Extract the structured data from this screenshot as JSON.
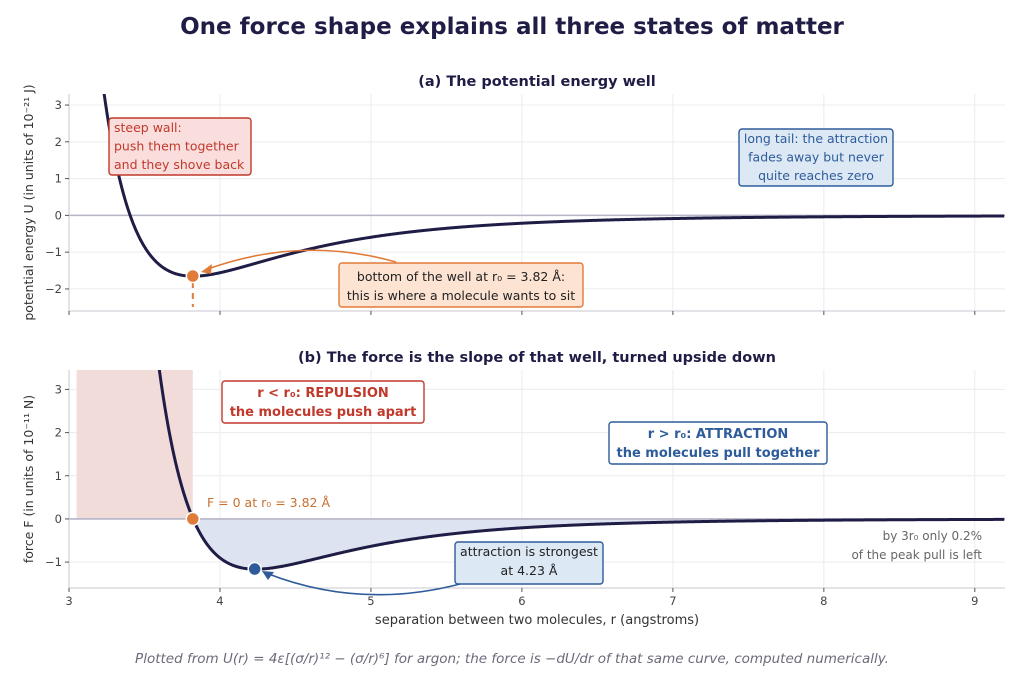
{
  "figure": {
    "title": "One force shape explains all three states of matter",
    "caption": "Plotted from U(r) = 4ε[(σ/r)¹² − (σ/r)⁶] for argon; the force is −dU/dr of that same curve, computed numerically."
  },
  "colors": {
    "curve": "#1f1d45",
    "repulsion": "#c0392b",
    "repulsion_fill": "#f2dcd9",
    "attraction": "#2e5c9a",
    "attraction_fill": "#dde3f0",
    "minimum_marker": "#e07b39",
    "grid": "#ececf0",
    "zero_line": "#b5b5c8"
  },
  "chart_data": [
    {
      "type": "line",
      "title": "(a) The potential energy well",
      "xlabel": "",
      "ylabel": "potential energy U  (in units of 10⁻²¹ J)",
      "xlim": [
        3.0,
        9.2
      ],
      "ylim": [
        -2.6,
        3.3
      ],
      "x_ticks": [
        3,
        4,
        5,
        6,
        7,
        8,
        9
      ],
      "y_ticks": [
        -2,
        -1,
        0,
        1,
        2,
        3
      ],
      "grid": true,
      "model": {
        "epsilon": 1.654,
        "sigma": 3.405
      },
      "series": [
        {
          "x": [
            3.2,
            3.3,
            3.4,
            3.5,
            3.6,
            3.7,
            3.82,
            3.9,
            4.0,
            4.2,
            4.4,
            4.6,
            4.8,
            5.0,
            5.5,
            6.0,
            6.5,
            7.0,
            7.5,
            8.0,
            8.5,
            9.0,
            9.2
          ],
          "y": [
            3.22,
            1.42,
            0.13,
            -0.75,
            -1.28,
            -1.56,
            -1.65,
            -1.63,
            -1.55,
            -1.31,
            -1.07,
            -0.85,
            -0.68,
            -0.55,
            -0.33,
            -0.2,
            -0.13,
            -0.089,
            -0.06,
            -0.042,
            -0.03,
            -0.022,
            -0.019
          ]
        }
      ],
      "marker": {
        "x": 3.82,
        "y": -1.65
      },
      "annotations": {
        "wall": [
          "steep wall:",
          "push them together",
          "and they shove back"
        ],
        "tail": [
          "long tail: the attraction",
          "fades away but never",
          "quite reaches zero"
        ],
        "minimum": [
          "bottom of the well at r₀ = 3.82 Å:",
          "this is where a molecule wants to sit"
        ]
      }
    },
    {
      "type": "line",
      "title": "(b) The force is the slope of that well, turned upside down",
      "xlabel": "separation between two molecules,  r  (angstroms)",
      "ylabel": "force F  (in units of 10⁻¹¹ N)",
      "xlim": [
        3.0,
        9.2
      ],
      "ylim": [
        -1.6,
        3.45
      ],
      "x_ticks": [
        3,
        4,
        5,
        6,
        7,
        8,
        9
      ],
      "y_ticks": [
        -1,
        0,
        1,
        2,
        3
      ],
      "grid": true,
      "series": [
        {
          "x": [
            3.58,
            3.6,
            3.7,
            3.82,
            3.9,
            4.0,
            4.1,
            4.23,
            4.4,
            4.6,
            4.8,
            5.0,
            5.5,
            6.0,
            6.5,
            7.0,
            7.5,
            8.0,
            8.5,
            9.0,
            9.2
          ],
          "y": [
            3.45,
            3.2,
            1.5,
            0.0,
            -0.55,
            -0.89,
            -1.07,
            -1.16,
            -1.14,
            -1.01,
            -0.84,
            -0.7,
            -0.4,
            -0.23,
            -0.14,
            -0.089,
            -0.058,
            -0.039,
            -0.027,
            -0.019,
            -0.017
          ]
        }
      ],
      "markers": [
        {
          "x": 3.82,
          "y": 0.0
        },
        {
          "x": 4.23,
          "y": -1.16
        }
      ],
      "annotations": {
        "repulsion_title": "r < r₀:  REPULSION",
        "repulsion_sub": "the molecules push apart",
        "attraction_title": "r > r₀:  ATTRACTION",
        "attraction_sub": "the molecules pull together",
        "zero_force": "F = 0 at r₀ = 3.82 Å",
        "strongest": [
          "attraction is strongest",
          "at 4.23 Å"
        ],
        "tail_note": [
          "by 3r₀ only 0.2%",
          "of the peak pull is left"
        ]
      }
    }
  ]
}
